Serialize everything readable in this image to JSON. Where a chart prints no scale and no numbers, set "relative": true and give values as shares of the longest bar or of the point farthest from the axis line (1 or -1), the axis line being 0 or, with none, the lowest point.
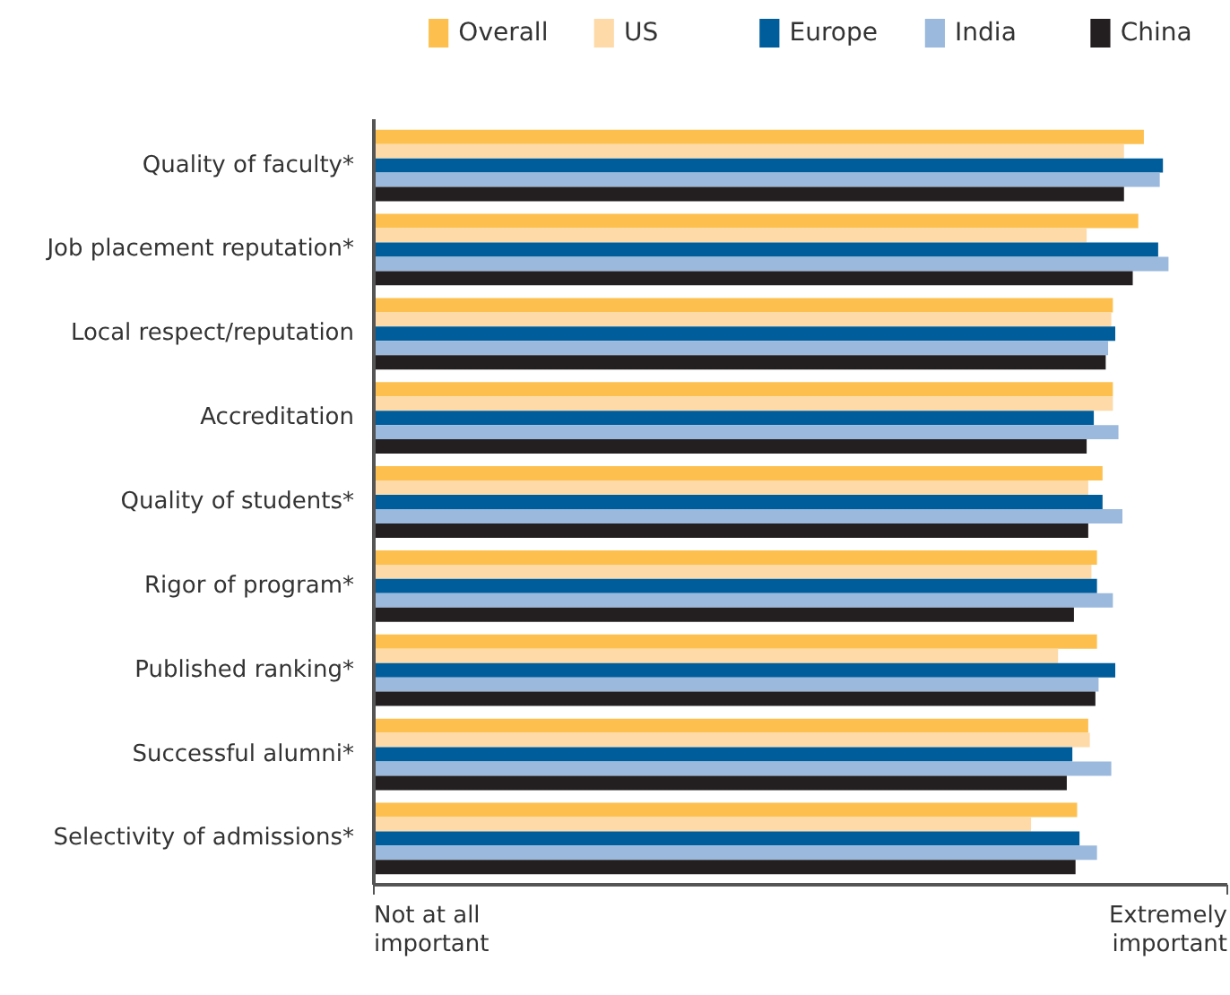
{
  "chart_data": {
    "type": "bar",
    "orientation": "horizontal",
    "relative": true,
    "legend": "top",
    "categories": [
      "Quality of faculty*",
      "Job placement reputation*",
      "Local respect/reputation",
      "Accreditation",
      "Quality of students*",
      "Rigor of program*",
      "Published ranking*",
      "Successful alumni*",
      "Selectivity of admissions*"
    ],
    "series": [
      {
        "name": "Overall",
        "color": "#fdc04f",
        "values": [
          0.969,
          0.962,
          0.93,
          0.93,
          0.917,
          0.91,
          0.91,
          0.899,
          0.885
        ]
      },
      {
        "name": "US",
        "color": "#fddaa8",
        "values": [
          0.944,
          0.897,
          0.928,
          0.93,
          0.899,
          0.903,
          0.861,
          0.901,
          0.827
        ]
      },
      {
        "name": "Europe",
        "color": "#005d9b",
        "values": [
          0.993,
          0.987,
          0.933,
          0.906,
          0.917,
          0.91,
          0.933,
          0.879,
          0.888
        ]
      },
      {
        "name": "India",
        "color": "#9ab9dd",
        "values": [
          0.989,
          1,
          0.924,
          0.937,
          0.942,
          0.93,
          0.912,
          0.928,
          0.91
        ]
      },
      {
        "name": "China",
        "color": "#231f20",
        "values": [
          0.944,
          0.955,
          0.921,
          0.897,
          0.899,
          0.881,
          0.908,
          0.872,
          0.883
        ]
      }
    ],
    "annotations": [
      "Not at all\nimportant",
      "Extremely\nimportant"
    ]
  }
}
